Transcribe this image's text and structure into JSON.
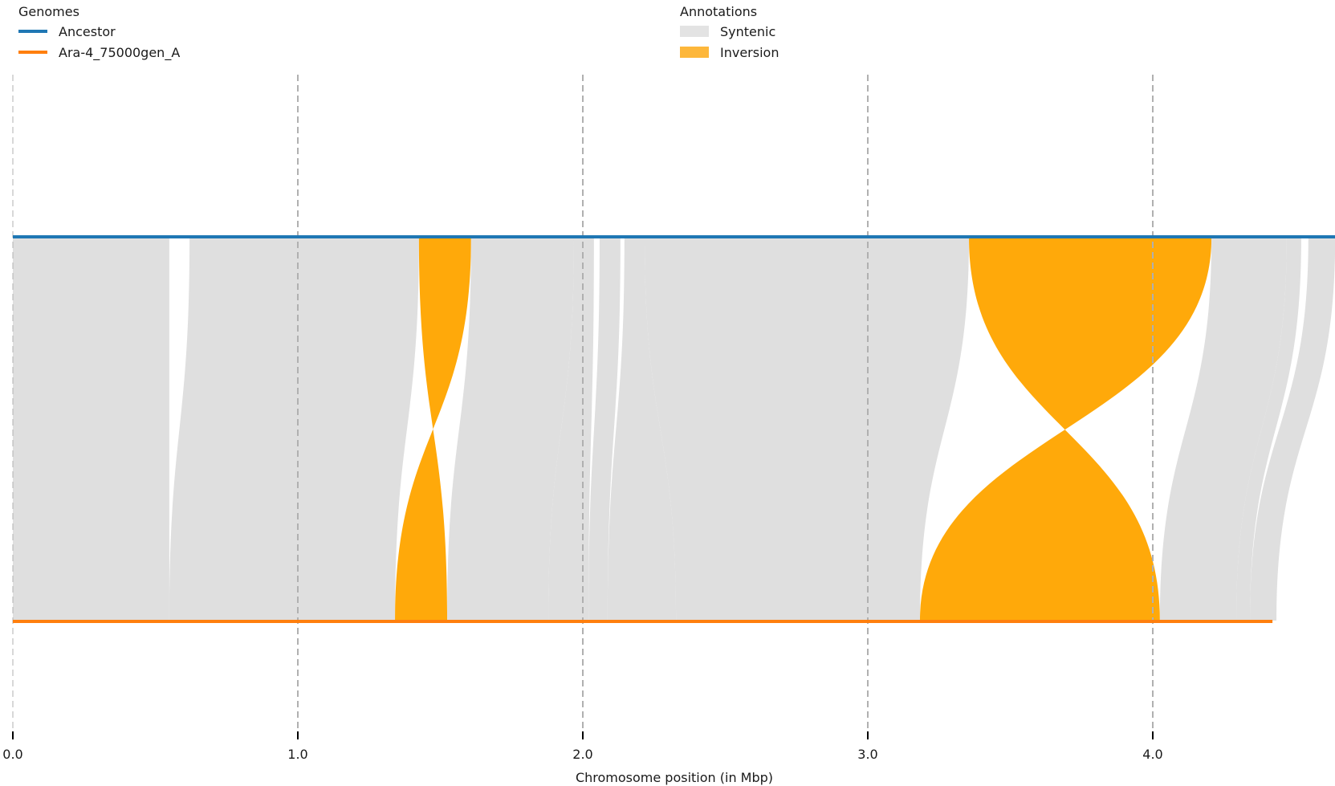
{
  "legends": {
    "genomes": {
      "title": "Genomes",
      "items": [
        {
          "label": "Ancestor",
          "color": "#1f77b4"
        },
        {
          "label": "Ara-4_75000gen_A",
          "color": "#ff7f0e"
        }
      ]
    },
    "annotations": {
      "title": "Annotations",
      "items": [
        {
          "label": "Syntenic",
          "color": "#dfdfdf"
        },
        {
          "label": "Inversion",
          "color": "#ffa90a"
        }
      ]
    }
  },
  "chart_data": {
    "type": "synteny",
    "title": "",
    "xlabel": "Chromosome position (in Mbp)",
    "ylabel": "",
    "xlim": [
      0.0,
      4.64
    ],
    "xticks": [
      0.0,
      1.0,
      2.0,
      3.0,
      4.0
    ],
    "xtick_labels": [
      "0.0",
      "1.0",
      "2.0",
      "3.0",
      "4.0"
    ],
    "grid": "vertical dashed at ticks",
    "genomes": [
      {
        "name": "Ancestor",
        "color": "#1f77b4",
        "length_mbp": 4.64,
        "position": "top"
      },
      {
        "name": "Ara-4_75000gen_A",
        "color": "#ff7f0e",
        "length_mbp": 4.42,
        "position": "bottom"
      }
    ],
    "alignments": [
      {
        "type": "Syntenic",
        "ancestor": [
          0.0,
          0.549
        ],
        "evolved": [
          0.0,
          0.549
        ]
      },
      {
        "type": "Syntenic",
        "ancestor": [
          0.62,
          1.425
        ],
        "evolved": [
          0.549,
          1.341
        ]
      },
      {
        "type": "Inversion",
        "ancestor": [
          1.425,
          1.608
        ],
        "evolved": [
          1.341,
          1.524
        ]
      },
      {
        "type": "Syntenic",
        "ancestor": [
          1.608,
          1.969
        ],
        "evolved": [
          1.524,
          1.879
        ]
      },
      {
        "type": "Syntenic",
        "ancestor": [
          1.969,
          2.039
        ],
        "evolved": [
          1.879,
          2.02
        ]
      },
      {
        "type": "Syntenic",
        "ancestor": [
          2.059,
          2.132
        ],
        "evolved": [
          2.02,
          2.087
        ]
      },
      {
        "type": "Syntenic",
        "ancestor": [
          2.146,
          2.217
        ],
        "evolved": [
          2.087,
          2.327
        ]
      },
      {
        "type": "Syntenic",
        "ancestor": [
          2.217,
          3.355
        ],
        "evolved": [
          2.327,
          3.183
        ]
      },
      {
        "type": "Inversion",
        "ancestor": [
          3.355,
          4.206
        ],
        "evolved": [
          3.183,
          4.025
        ]
      },
      {
        "type": "Syntenic",
        "ancestor": [
          4.206,
          4.47
        ],
        "evolved": [
          4.025,
          4.293
        ]
      },
      {
        "type": "Syntenic",
        "ancestor": [
          4.47,
          4.521
        ],
        "evolved": [
          4.293,
          4.341
        ]
      },
      {
        "type": "Syntenic",
        "ancestor": [
          4.546,
          4.64
        ],
        "evolved": [
          4.341,
          4.434
        ]
      }
    ]
  }
}
